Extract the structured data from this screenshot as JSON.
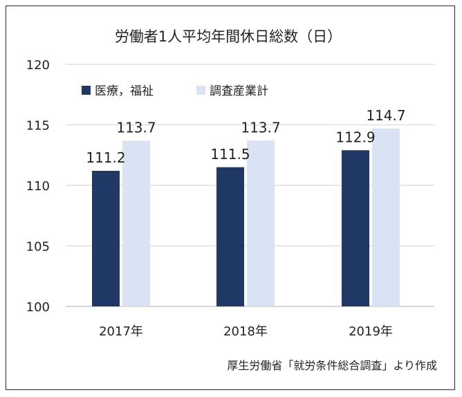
{
  "chart_data": {
    "type": "bar",
    "title": "労働者1人平均年間休日総数（日）",
    "categories": [
      "2017年",
      "2018年",
      "2019年"
    ],
    "series": [
      {
        "name": "医療，福祉",
        "values": [
          111.2,
          111.5,
          112.9
        ],
        "color": "#1f3864"
      },
      {
        "name": "調査産業計",
        "values": [
          113.7,
          113.7,
          114.7
        ],
        "color": "#dae3f3"
      }
    ],
    "value_labels": [
      [
        "111.2",
        "111.5",
        "112.9"
      ],
      [
        "113.7",
        "113.7",
        "114.7"
      ]
    ],
    "ylim": [
      100,
      120
    ],
    "yticks": [
      "100",
      "105",
      "110",
      "115",
      "120"
    ],
    "grid": true,
    "legend_position": "top-left",
    "xlabel": "",
    "ylabel": ""
  },
  "source_note": "厚生労働省「就労条件総合調査」より作成"
}
